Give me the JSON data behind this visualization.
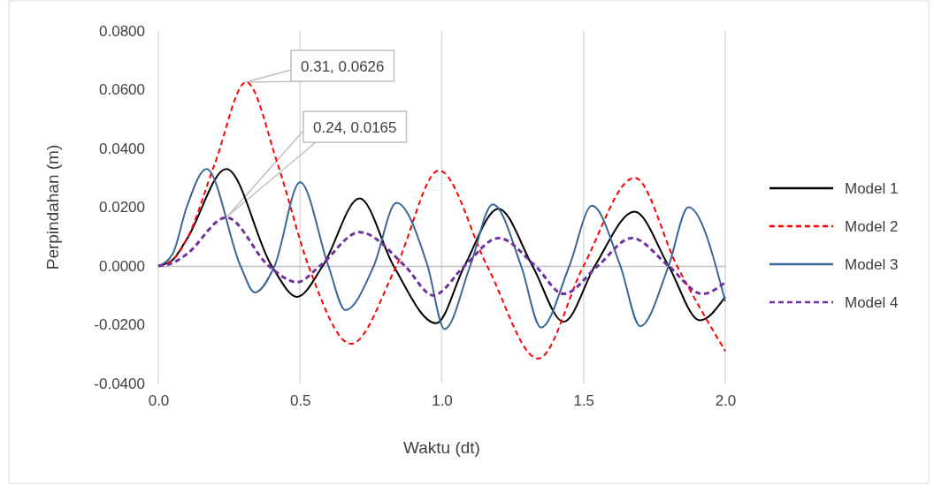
{
  "chart_data": {
    "type": "line",
    "xlabel": "Waktu (dt)",
    "ylabel": "Perpindahan (m)",
    "xlim": [
      0,
      2
    ],
    "xticks": [
      {
        "value": 0,
        "label": "0.0"
      },
      {
        "value": 0.5,
        "label": "0.5"
      },
      {
        "value": 1,
        "label": "1.0"
      },
      {
        "value": 1.5,
        "label": "1.5"
      },
      {
        "value": 2,
        "label": "2.0"
      }
    ],
    "ylim": [
      -0.04,
      0.08
    ],
    "yticks": [
      {
        "value": -0.04,
        "label": "-0.0400"
      },
      {
        "value": -0.02,
        "label": "-0.0200"
      },
      {
        "value": 0,
        "label": "0.0000"
      },
      {
        "value": 0.02,
        "label": "0.0200"
      },
      {
        "value": 0.04,
        "label": "0.0400"
      },
      {
        "value": 0.06,
        "label": "0.0600"
      },
      {
        "value": 0.08,
        "label": "0.0800"
      }
    ],
    "grid": "x",
    "legend": "right",
    "series": [
      {
        "name": "Model 1",
        "color": "#000000",
        "line_style": "solid",
        "x": [
          0,
          0.05,
          0.1,
          0.24,
          0.4,
          0.49,
          0.58,
          0.71,
          0.83,
          0.98,
          1.08,
          1.2,
          1.32,
          1.43,
          1.54,
          1.68,
          1.8,
          1.91,
          2.0
        ],
        "values": [
          0,
          0.002,
          0.009,
          0.033,
          0,
          -0.0105,
          0,
          0.023,
          0,
          -0.0195,
          0,
          0.0195,
          0,
          -0.019,
          0,
          0.0185,
          0,
          -0.0185,
          -0.0105
        ]
      },
      {
        "name": "Model 2",
        "color": "#ff0000",
        "line_style": "dashed",
        "x": [
          0,
          0.05,
          0.1,
          0.2,
          0.31,
          0.42,
          0.53,
          0.68,
          0.84,
          0.99,
          1.16,
          1.34,
          1.5,
          1.68,
          1.83,
          2.0
        ],
        "values": [
          0,
          0.002,
          0.009,
          0.035,
          0.0626,
          0.035,
          0,
          -0.0265,
          0,
          0.0325,
          0,
          -0.0315,
          0,
          0.03,
          0,
          -0.029
        ]
      },
      {
        "name": "Model 3",
        "color": "#3b6796",
        "line_style": "solid",
        "x": [
          0,
          0.05,
          0.1,
          0.17,
          0.29,
          0.34,
          0.41,
          0.5,
          0.6,
          0.66,
          0.76,
          0.84,
          0.95,
          1.01,
          1.1,
          1.18,
          1.28,
          1.35,
          1.45,
          1.53,
          1.63,
          1.7,
          1.8,
          1.87,
          2.0
        ],
        "values": [
          0,
          0.004,
          0.02,
          0.033,
          0,
          -0.009,
          0,
          0.0285,
          0,
          -0.015,
          0,
          0.0215,
          0,
          -0.0215,
          0,
          0.021,
          0,
          -0.021,
          0,
          0.0205,
          0,
          -0.0205,
          0,
          0.02,
          -0.012
        ]
      },
      {
        "name": "Model 4",
        "color": "#7030a0",
        "line_style": "dashed",
        "x": [
          0,
          0.05,
          0.1,
          0.24,
          0.39,
          0.49,
          0.57,
          0.71,
          0.87,
          0.97,
          1.08,
          1.2,
          1.33,
          1.43,
          1.55,
          1.67,
          1.8,
          1.92,
          2.0
        ],
        "values": [
          0,
          0.001,
          0.004,
          0.0165,
          0,
          -0.0055,
          0,
          0.0115,
          0,
          -0.01,
          0,
          0.0095,
          0,
          -0.0095,
          0,
          0.0095,
          0,
          -0.0095,
          -0.0055
        ]
      }
    ],
    "annotations": [
      "0.31, 0.0626",
      "0.24, 0.0165"
    ]
  }
}
